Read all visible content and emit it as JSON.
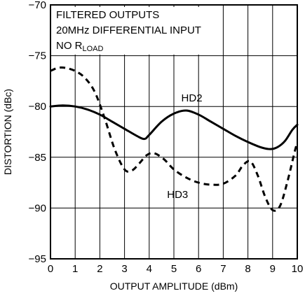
{
  "chart_data": {
    "type": "line",
    "xlabel": "OUTPUT AMPLITUDE (dBm)",
    "ylabel": "DISTORTION (dBc)",
    "xlim": [
      0,
      10
    ],
    "ylim": [
      -95,
      -70
    ],
    "x_ticks": [
      "0",
      "1",
      "2",
      "3",
      "4",
      "5",
      "6",
      "7",
      "8",
      "9",
      "10"
    ],
    "y_ticks": [
      "−70",
      "−75",
      "−80",
      "−85",
      "−90",
      "−95"
    ],
    "grid": true,
    "annotations": {
      "line1": "FILTERED OUTPUTS",
      "line2": "20MHz DIFFERENTIAL INPUT",
      "line3_prefix": "NO R",
      "line3_subscript": "LOAD"
    },
    "series": [
      {
        "name": "HD2",
        "style": "solid",
        "x": [
          0,
          0.5,
          1,
          1.5,
          2,
          2.5,
          3,
          3.5,
          3.8,
          4,
          4.5,
          5,
          5.5,
          6,
          6.5,
          7,
          7.5,
          8,
          8.5,
          8.9,
          9.2,
          9.5,
          9.8,
          10
        ],
        "y": [
          -80.0,
          -79.9,
          -80.0,
          -80.3,
          -80.8,
          -81.5,
          -82.2,
          -82.9,
          -83.2,
          -82.8,
          -81.5,
          -80.7,
          -80.4,
          -80.8,
          -81.5,
          -82.2,
          -82.9,
          -83.5,
          -84.0,
          -84.2,
          -84.0,
          -83.4,
          -82.3,
          -81.8
        ]
      },
      {
        "name": "HD3",
        "style": "dashed",
        "x": [
          0,
          0.3,
          0.6,
          1,
          1.4,
          1.8,
          2.2,
          2.6,
          3,
          3.3,
          3.6,
          3.9,
          4.2,
          4.6,
          5,
          5.5,
          6,
          6.5,
          7,
          7.5,
          7.8,
          8.1,
          8.4,
          8.7,
          9,
          9.3,
          9.6,
          9.9,
          10
        ],
        "y": [
          -76.5,
          -76.2,
          -76.2,
          -76.5,
          -77.2,
          -78.6,
          -81.2,
          -84.2,
          -86.2,
          -86.3,
          -85.6,
          -84.8,
          -84.6,
          -85.2,
          -86.2,
          -87.0,
          -87.5,
          -87.7,
          -87.6,
          -86.8,
          -85.8,
          -85.4,
          -86.8,
          -88.9,
          -90.2,
          -89.8,
          -87.4,
          -84.4,
          -83.6
        ]
      }
    ]
  }
}
